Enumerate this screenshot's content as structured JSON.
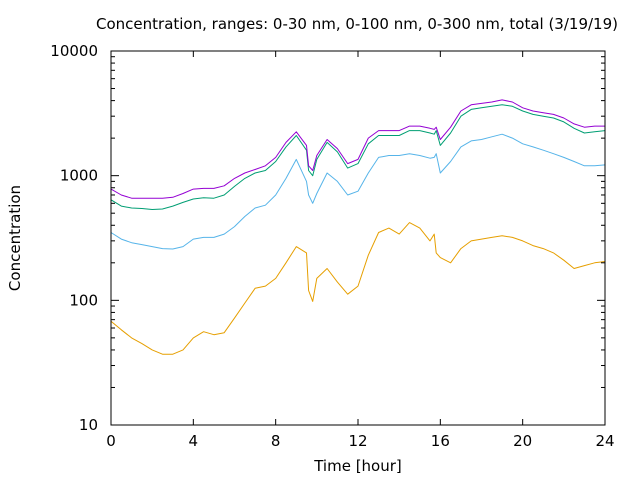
{
  "chart_data": {
    "type": "line",
    "title": "Concentration, ranges: 0-30 nm, 0-100 nm, 0-300 nm, total (3/19/19)",
    "xlabel": "Time [hour]",
    "ylabel": "Concentration",
    "xlim": [
      0,
      24
    ],
    "ylim": [
      10,
      10000
    ],
    "yscale": "log",
    "grid": false,
    "legend": "none",
    "x_ticks": [
      {
        "value": 0,
        "label": "0"
      },
      {
        "value": 4,
        "label": "4"
      },
      {
        "value": 8,
        "label": "8"
      },
      {
        "value": 12,
        "label": "12"
      },
      {
        "value": 16,
        "label": "16"
      },
      {
        "value": 20,
        "label": "20"
      },
      {
        "value": 24,
        "label": "24"
      }
    ],
    "y_ticks": [
      {
        "value": 10,
        "label": "10"
      },
      {
        "value": 100,
        "label": "100"
      },
      {
        "value": 1000,
        "label": "1000"
      },
      {
        "value": 10000,
        "label": "10000"
      }
    ],
    "series": [
      {
        "color": "#e69f00",
        "x": [
          0,
          0.5,
          1,
          1.5,
          2,
          2.5,
          3,
          3.5,
          4,
          4.5,
          5,
          5.5,
          6,
          6.5,
          7,
          7.5,
          8,
          8.5,
          9,
          9.5,
          9.6,
          9.8,
          10,
          10.5,
          11,
          11.5,
          12,
          12.5,
          13,
          13.5,
          14,
          14.5,
          15,
          15.5,
          15.7,
          15.8,
          16,
          16.5,
          17,
          17.5,
          18,
          18.5,
          19,
          19.5,
          20,
          20.5,
          21,
          21.5,
          22,
          22.5,
          23,
          23.5,
          24
        ],
        "values": [
          68,
          58,
          50,
          45,
          40,
          37,
          37,
          40,
          50,
          56,
          53,
          55,
          72,
          95,
          125,
          130,
          150,
          200,
          270,
          240,
          120,
          98,
          150,
          180,
          140,
          112,
          130,
          230,
          350,
          380,
          340,
          420,
          380,
          300,
          340,
          240,
          220,
          200,
          260,
          300,
          310,
          320,
          330,
          320,
          300,
          275,
          260,
          240,
          210,
          180,
          190,
          200,
          205
        ]
      },
      {
        "color": "#56b4e9",
        "x": [
          0,
          0.5,
          1,
          1.5,
          2,
          2.5,
          3,
          3.5,
          4,
          4.5,
          5,
          5.5,
          6,
          6.5,
          7,
          7.5,
          8,
          8.5,
          9,
          9.5,
          9.6,
          9.8,
          10,
          10.5,
          11,
          11.5,
          12,
          12.5,
          13,
          13.5,
          14,
          14.5,
          15,
          15.5,
          15.7,
          15.8,
          16,
          16.5,
          17,
          17.5,
          18,
          18.5,
          19,
          19.5,
          20,
          20.5,
          21,
          21.5,
          22,
          22.5,
          23,
          23.5,
          24
        ],
        "values": [
          350,
          310,
          290,
          280,
          270,
          260,
          258,
          270,
          310,
          320,
          320,
          340,
          390,
          470,
          550,
          580,
          700,
          950,
          1350,
          900,
          700,
          600,
          720,
          1050,
          900,
          700,
          750,
          1050,
          1400,
          1450,
          1450,
          1500,
          1450,
          1380,
          1400,
          1500,
          1050,
          1300,
          1700,
          1900,
          1950,
          2050,
          2150,
          2000,
          1800,
          1700,
          1600,
          1500,
          1400,
          1300,
          1200,
          1200,
          1220
        ]
      },
      {
        "color": "#009e73",
        "x": [
          0,
          0.5,
          1,
          1.5,
          2,
          2.5,
          3,
          3.5,
          4,
          4.5,
          5,
          5.5,
          6,
          6.5,
          7,
          7.5,
          8,
          8.5,
          9,
          9.5,
          9.6,
          9.8,
          10,
          10.5,
          11,
          11.5,
          12,
          12.5,
          13,
          13.5,
          14,
          14.5,
          15,
          15.5,
          15.7,
          15.8,
          16,
          16.5,
          17,
          17.5,
          18,
          18.5,
          19,
          19.5,
          20,
          20.5,
          21,
          21.5,
          22,
          22.5,
          23,
          23.5,
          24
        ],
        "values": [
          640,
          570,
          550,
          545,
          535,
          540,
          570,
          610,
          650,
          665,
          660,
          700,
          820,
          950,
          1050,
          1100,
          1300,
          1700,
          2100,
          1600,
          1100,
          1000,
          1350,
          1850,
          1550,
          1150,
          1250,
          1800,
          2100,
          2100,
          2100,
          2300,
          2300,
          2200,
          2150,
          2300,
          1750,
          2200,
          3000,
          3400,
          3500,
          3600,
          3700,
          3600,
          3300,
          3100,
          3000,
          2900,
          2700,
          2400,
          2200,
          2250,
          2300
        ]
      },
      {
        "color": "#9400d3",
        "x": [
          0,
          0.5,
          1,
          1.5,
          2,
          2.5,
          3,
          3.5,
          4,
          4.5,
          5,
          5.5,
          6,
          6.5,
          7,
          7.5,
          8,
          8.5,
          9,
          9.5,
          9.6,
          9.8,
          10,
          10.5,
          11,
          11.5,
          12,
          12.5,
          13,
          13.5,
          14,
          14.5,
          15,
          15.5,
          15.7,
          15.8,
          16,
          16.5,
          17,
          17.5,
          18,
          18.5,
          19,
          19.5,
          20,
          20.5,
          21,
          21.5,
          22,
          22.5,
          23,
          23.5,
          24
        ],
        "values": [
          780,
          700,
          660,
          660,
          660,
          660,
          670,
          720,
          780,
          790,
          790,
          830,
          950,
          1050,
          1120,
          1200,
          1400,
          1850,
          2250,
          1750,
          1200,
          1100,
          1450,
          1950,
          1650,
          1250,
          1350,
          2000,
          2300,
          2300,
          2300,
          2500,
          2500,
          2400,
          2350,
          2450,
          1950,
          2450,
          3300,
          3700,
          3800,
          3900,
          4050,
          3900,
          3500,
          3300,
          3200,
          3100,
          2900,
          2600,
          2450,
          2500,
          2500
        ]
      }
    ]
  }
}
